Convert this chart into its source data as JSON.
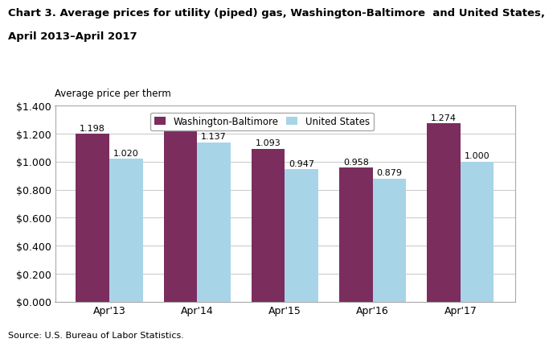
{
  "title_line1": "Chart 3. Average prices for utility (piped) gas, Washington-Baltimore  and United States,",
  "title_line2": "April 2013–April 2017",
  "ylabel": "Average price per therm",
  "source": "Source: U.S. Bureau of Labor Statistics.",
  "categories": [
    "Apr'13",
    "Apr'14",
    "Apr'15",
    "Apr'16",
    "Apr'17"
  ],
  "washington_baltimore": [
    1.198,
    1.229,
    1.093,
    0.958,
    1.274
  ],
  "united_states": [
    1.02,
    1.137,
    0.947,
    0.879,
    1.0
  ],
  "wb_color": "#7B2D5E",
  "us_color": "#A8D4E8",
  "ylim": [
    0,
    1.4
  ],
  "yticks": [
    0.0,
    0.2,
    0.4,
    0.6,
    0.8,
    1.0,
    1.2,
    1.4
  ],
  "legend_labels": [
    "Washington-Baltimore",
    "United States"
  ],
  "bar_width": 0.38,
  "title_fontsize": 9.5,
  "label_fontsize": 8.5,
  "tick_fontsize": 9,
  "annotation_fontsize": 8,
  "source_fontsize": 8
}
